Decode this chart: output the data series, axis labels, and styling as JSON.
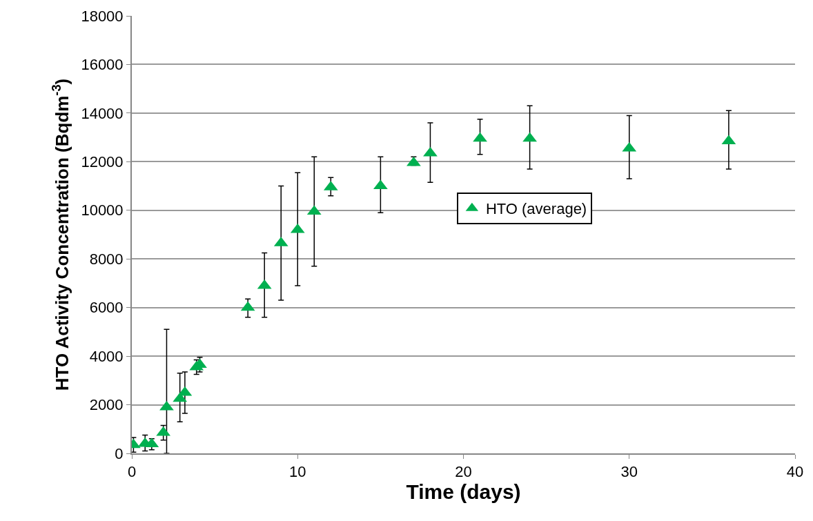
{
  "chart_data": {
    "type": "scatter",
    "xlabel": "Time (days)",
    "ylabel": "HTO Activity Concentration (Bqdm$^{-3}$)",
    "xlim": [
      0,
      40
    ],
    "xticks": [
      0,
      10,
      20,
      30,
      40
    ],
    "ylim": [
      0,
      18000
    ],
    "yticks": [
      0,
      2000,
      4000,
      6000,
      8000,
      10000,
      12000,
      14000,
      16000,
      18000
    ],
    "grid": "y",
    "legend": "right",
    "marker": "triangle",
    "series": [
      {
        "name": "HTO (average)",
        "color": "#00b050",
        "x": [
          0.1,
          0.8,
          1.2,
          1.9,
          2.1,
          2.9,
          3.2,
          3.9,
          4.1,
          7,
          8,
          9,
          10,
          11,
          12,
          15,
          17,
          18,
          21,
          24,
          30,
          36
        ],
        "values": [
          350,
          400,
          380,
          850,
          1900,
          2250,
          2500,
          3550,
          3650,
          6000,
          6900,
          8650,
          9200,
          9950,
          10950,
          11000,
          11950,
          12350,
          12950,
          12950,
          12550,
          12850
        ],
        "errors": [
          [
            50,
            650
          ],
          [
            100,
            750
          ],
          [
            150,
            600
          ],
          [
            550,
            1150
          ],
          [
            0,
            5100
          ],
          [
            1300,
            3300
          ],
          [
            1650,
            3350
          ],
          [
            3250,
            3850
          ],
          [
            3350,
            3950
          ],
          [
            5600,
            6350
          ],
          [
            5600,
            8250
          ],
          [
            6300,
            11000
          ],
          [
            6900,
            11550
          ],
          [
            7700,
            12200
          ],
          [
            10600,
            11350
          ],
          [
            9900,
            12200
          ],
          [
            11850,
            12200
          ],
          [
            11150,
            13600
          ],
          [
            12300,
            13750
          ],
          [
            11700,
            14300
          ],
          [
            11300,
            13900
          ],
          [
            11700,
            14100
          ]
        ]
      }
    ]
  }
}
